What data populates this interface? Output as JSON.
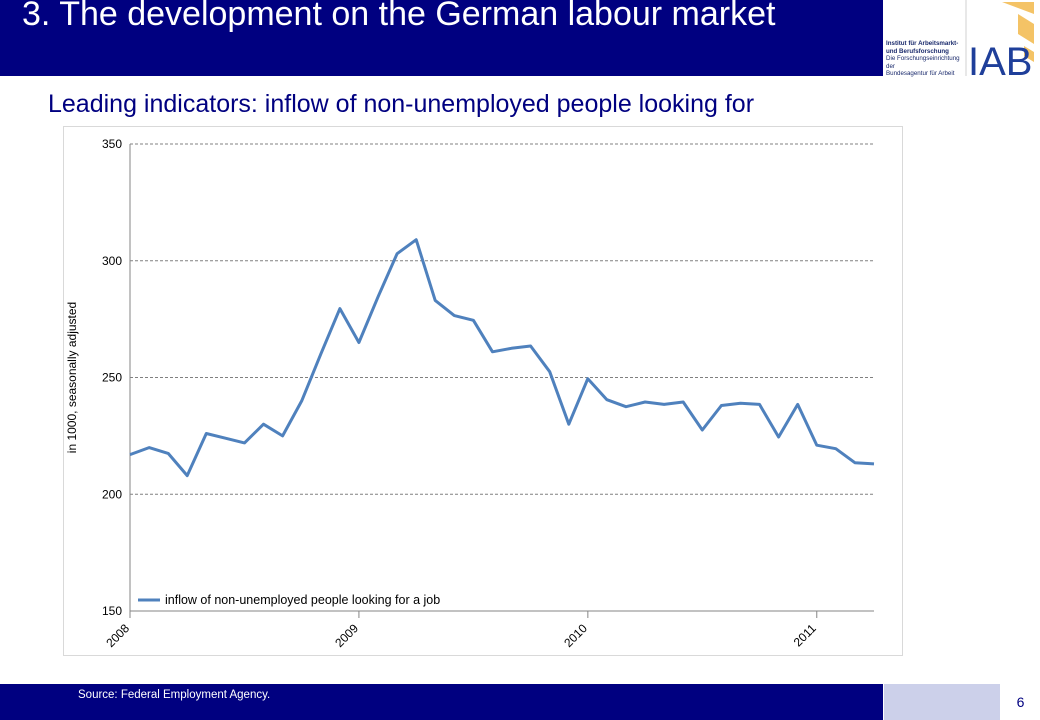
{
  "header": {
    "title": "3. The development on the German labour market"
  },
  "logo": {
    "brand": "IAB",
    "line1": "Institut für Arbeitsmarkt-",
    "line2": "und Berufsforschung",
    "line3": "Die Forschungseinrichtung der",
    "line4": "Bundesagentur für Arbeit"
  },
  "subtitle": "Leading indicators: inflow of non-unemployed people looking for",
  "footer": {
    "source": "Source: Federal Employment Agency.",
    "page": "6"
  },
  "colors": {
    "header_bg": "#000080",
    "line": "#4f81bd",
    "footer_light": "#ccd0ea"
  },
  "chart_data": {
    "type": "line",
    "ylabel": "in 1000, seasonally adjusted",
    "ylim": [
      150,
      350
    ],
    "yticks": [
      150,
      200,
      250,
      300,
      350
    ],
    "xlim": [
      2008.0,
      2011.25
    ],
    "xticks": [
      2008,
      2009,
      2010,
      2011
    ],
    "grid": "horizontal dashed",
    "legend": "bottom-left",
    "series": [
      {
        "name": "inflow of non-unemployed people looking for a job",
        "x": [
          2008.0,
          2008.0833,
          2008.1667,
          2008.25,
          2008.3333,
          2008.4167,
          2008.5,
          2008.5833,
          2008.6667,
          2008.75,
          2008.8333,
          2008.9167,
          2009.0,
          2009.0833,
          2009.1667,
          2009.25,
          2009.3333,
          2009.4167,
          2009.5,
          2009.5833,
          2009.6667,
          2009.75,
          2009.8333,
          2009.9167,
          2010.0,
          2010.0833,
          2010.1667,
          2010.25,
          2010.3333,
          2010.4167,
          2010.5,
          2010.5833,
          2010.6667,
          2010.75,
          2010.8333,
          2010.9167,
          2011.0,
          2011.0833,
          2011.1667,
          2011.25
        ],
        "values": [
          217,
          220,
          217.5,
          208,
          226,
          224,
          222,
          230,
          225,
          240,
          260,
          279.5,
          265,
          284.5,
          303,
          309,
          283,
          276.5,
          274.5,
          261,
          262.5,
          263.5,
          252.5,
          230,
          249.5,
          240.5,
          237.5,
          239.5,
          238.5,
          239.5,
          227.5,
          238,
          239,
          238.5,
          224.5,
          238.5,
          221,
          219.5,
          213.5,
          213
        ]
      }
    ]
  }
}
